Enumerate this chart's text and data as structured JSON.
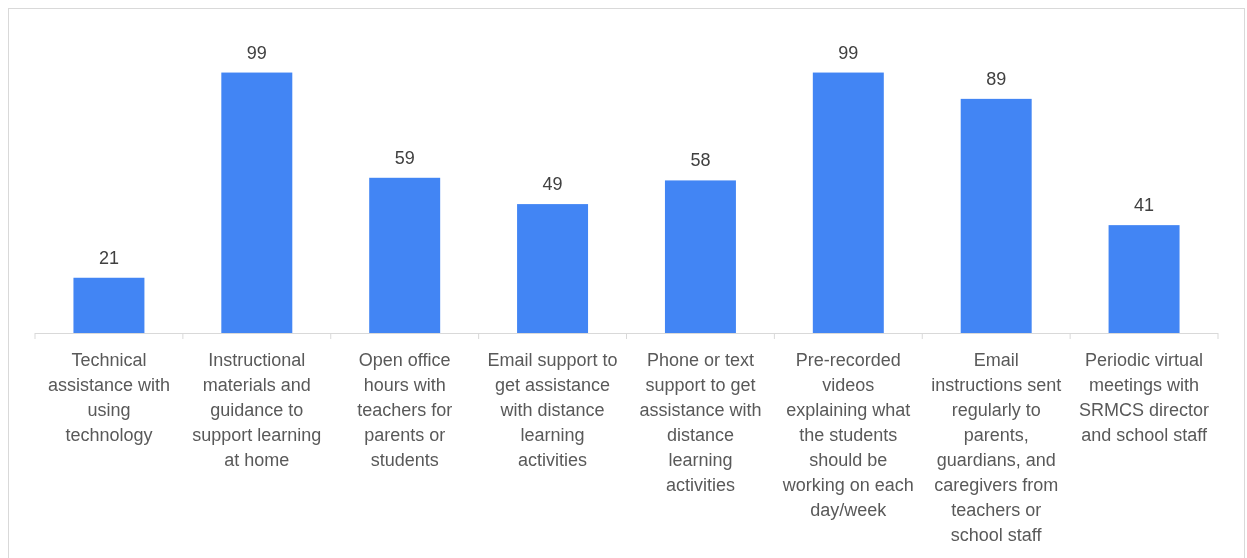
{
  "chart_data": {
    "type": "bar",
    "categories": [
      "Technical assistance with using technology",
      "Instructional materials and guidance to support learning at home",
      "Open office hours with teachers for parents or students",
      "Email support to get assistance with distance learning activities",
      "Phone or text support to get assistance with distance learning activities",
      "Pre-recorded videos explaining what the students should be working on each day/week",
      "Email instructions sent regularly to parents, guardians, and caregivers from teachers or school staff",
      "Periodic virtual meetings with SRMCS director and school staff"
    ],
    "values": [
      21,
      99,
      59,
      49,
      58,
      99,
      89,
      41
    ],
    "color": "#4285f4",
    "data_labels": true,
    "tick_labels": "x"
  }
}
